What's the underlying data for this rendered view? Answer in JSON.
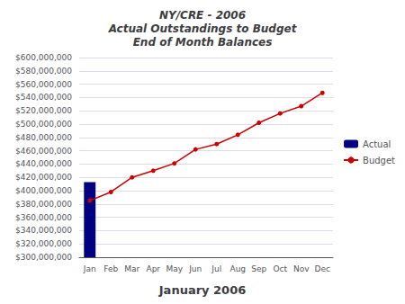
{
  "chart_data": {
    "type": "bar",
    "title": "NY/CRE - 2006\nActual Outstandings to Budget\nEnd of Month Balances",
    "subtitle": "January 2006",
    "categories": [
      "Jan",
      "Feb",
      "Mar",
      "Apr",
      "May",
      "Jun",
      "Jul",
      "Aug",
      "Sep",
      "Oct",
      "Nov",
      "Dec"
    ],
    "series": [
      {
        "name": "Actual",
        "type": "bar",
        "color": "#000080",
        "values": [
          413000000,
          null,
          null,
          null,
          null,
          null,
          null,
          null,
          null,
          null,
          null,
          null
        ]
      },
      {
        "name": "Budget",
        "type": "line",
        "color": "#cc0000",
        "marker": "circle",
        "values": [
          385000000,
          398000000,
          420000000,
          430000000,
          441000000,
          462000000,
          470000000,
          484000000,
          502000000,
          516000000,
          527000000,
          547000000
        ]
      }
    ],
    "ylim": [
      300000000,
      600000000
    ],
    "yticks": [
      {
        "value": 300000000,
        "label": "$300,000,000"
      },
      {
        "value": 320000000,
        "label": "$320,000,000"
      },
      {
        "value": 340000000,
        "label": "$340,000,000"
      },
      {
        "value": 360000000,
        "label": "$360,000,000"
      },
      {
        "value": 380000000,
        "label": "$380,000,000"
      },
      {
        "value": 400000000,
        "label": "$400,000,000"
      },
      {
        "value": 420000000,
        "label": "$420,000,000"
      },
      {
        "value": 440000000,
        "label": "$440,000,000"
      },
      {
        "value": 460000000,
        "label": "$460,000,000"
      },
      {
        "value": 480000000,
        "label": "$480,000,000"
      },
      {
        "value": 500000000,
        "label": "$500,000,000"
      },
      {
        "value": 520000000,
        "label": "$520,000,000"
      },
      {
        "value": 540000000,
        "label": "$540,000,000"
      },
      {
        "value": 560000000,
        "label": "$560,000,000"
      },
      {
        "value": 580000000,
        "label": "$580,000,000"
      },
      {
        "value": 600000000,
        "label": "$600,000,000"
      }
    ],
    "grid": true,
    "legend": "right"
  }
}
